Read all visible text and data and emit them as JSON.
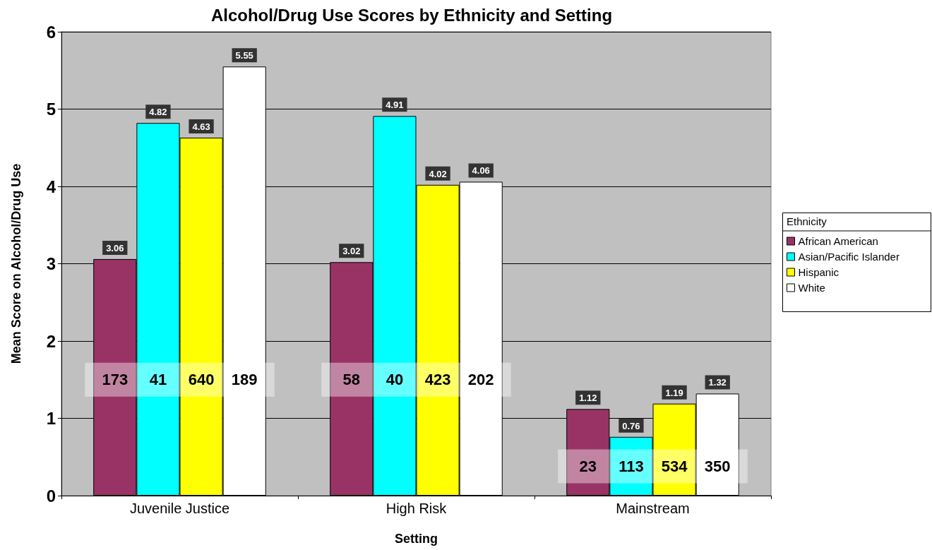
{
  "chart_data": {
    "type": "bar",
    "title": "Alcohol/Drug Use Scores by Ethnicity and Setting",
    "xlabel": "Setting",
    "ylabel": "Mean Score on Alcohol/Drug Use",
    "legend_title": "Ethnicity",
    "categories": [
      "Juvenile Justice",
      "High Risk",
      "Mainstream"
    ],
    "series": [
      {
        "name": "African American",
        "color": "#993366",
        "values": [
          3.06,
          3.02,
          1.12
        ]
      },
      {
        "name": "Asian/Pacific Islander",
        "color": "#00ffff",
        "values": [
          4.82,
          4.91,
          0.76
        ]
      },
      {
        "name": "Hispanic",
        "color": "#ffff00",
        "values": [
          4.63,
          4.02,
          1.19
        ]
      },
      {
        "name": "White",
        "color": "#ffffff",
        "values": [
          5.55,
          4.06,
          1.32
        ]
      }
    ],
    "ylim": [
      0,
      6
    ],
    "yticks": [
      0,
      1,
      2,
      3,
      4,
      5,
      6
    ],
    "grid": "y",
    "legend": "right",
    "data_labels": true,
    "annotations": [
      "173",
      "41",
      "640",
      "189",
      "58",
      "40",
      "423",
      "202",
      "23",
      "113",
      "534",
      "350"
    ]
  }
}
